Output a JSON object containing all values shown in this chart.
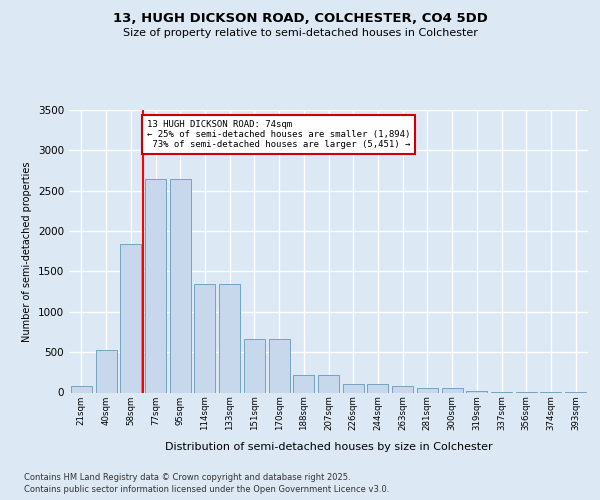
{
  "title_line1": "13, HUGH DICKSON ROAD, COLCHESTER, CO4 5DD",
  "title_line2": "Size of property relative to semi-detached houses in Colchester",
  "xlabel": "Distribution of semi-detached houses by size in Colchester",
  "ylabel": "Number of semi-detached properties",
  "footer_line1": "Contains HM Land Registry data © Crown copyright and database right 2025.",
  "footer_line2": "Contains public sector information licensed under the Open Government Licence v3.0.",
  "property_label": "13 HUGH DICKSON ROAD: 74sqm",
  "pct_smaller": 25,
  "pct_smaller_n": 1894,
  "pct_larger": 73,
  "pct_larger_n": 5451,
  "bin_labels": [
    "21sqm",
    "40sqm",
    "58sqm",
    "77sqm",
    "95sqm",
    "114sqm",
    "133sqm",
    "151sqm",
    "170sqm",
    "188sqm",
    "207sqm",
    "226sqm",
    "244sqm",
    "263sqm",
    "281sqm",
    "300sqm",
    "319sqm",
    "337sqm",
    "356sqm",
    "374sqm",
    "393sqm"
  ],
  "bar_values": [
    75,
    530,
    1840,
    2650,
    2650,
    1340,
    1340,
    660,
    660,
    220,
    220,
    110,
    110,
    75,
    55,
    55,
    15,
    10,
    5,
    3,
    2
  ],
  "bar_color": "#c8d8ec",
  "bar_edge_color": "#6699bb",
  "ylim": [
    0,
    3500
  ],
  "yticks": [
    0,
    500,
    1000,
    1500,
    2000,
    2500,
    3000,
    3500
  ],
  "background_color": "#dce8f4",
  "plot_background": "#dce8f4",
  "grid_color": "#ffffff",
  "annotation_box_bg": "#ffffff",
  "annotation_box_edge": "#cc0000",
  "red_line_bin_index": 3
}
